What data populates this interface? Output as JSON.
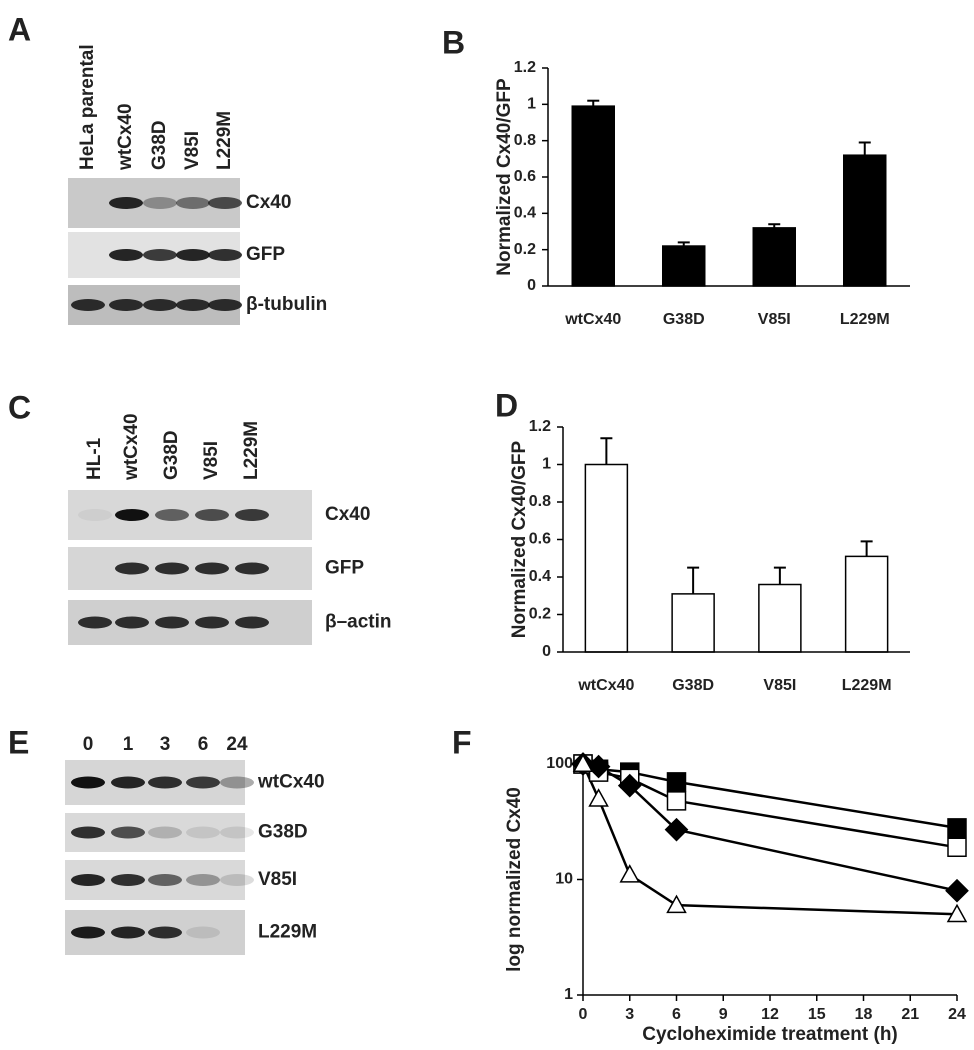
{
  "blots": [
    {
      "panel": "A",
      "lanes": [
        "HeLa parental",
        "wtCx40",
        "G38D",
        "V85I",
        "L229M"
      ],
      "rows": [
        "Cx40",
        "GFP",
        "β-tubulin"
      ]
    },
    {
      "panel": "C",
      "lanes": [
        "HL-1",
        "wtCx40",
        "G38D",
        "V85I",
        "L229M"
      ],
      "rows": [
        "Cx40",
        "GFP",
        "β–actin"
      ]
    },
    {
      "panel": "E",
      "lanes": [
        "0",
        "1",
        "3",
        "6",
        "24"
      ],
      "rows": [
        "wtCx40",
        "G38D",
        "V85I",
        "L229M"
      ]
    }
  ],
  "chart_data": [
    {
      "type": "bar",
      "panel": "B",
      "y_label": "Normalized Cx40/GFP",
      "categories": [
        "wtCx40",
        "G38D",
        "V85I",
        "L229M"
      ],
      "values": [
        0.99,
        0.22,
        0.32,
        0.72
      ],
      "errors": [
        0.03,
        0.02,
        0.02,
        0.07
      ],
      "color": "#000000",
      "ylim": [
        0,
        1.2
      ],
      "yticks": [
        0,
        0.2,
        0.4,
        0.6,
        0.8,
        1,
        1.2
      ]
    },
    {
      "type": "bar",
      "panel": "D",
      "y_label": "Normalized Cx40/GFP",
      "categories": [
        "wtCx40",
        "G38D",
        "V85I",
        "L229M"
      ],
      "values": [
        1.0,
        0.31,
        0.36,
        0.51
      ],
      "errors": [
        0.14,
        0.14,
        0.09,
        0.08
      ],
      "color": "#ffffff",
      "ylim": [
        0,
        1.2
      ],
      "yticks": [
        0,
        0.2,
        0.4,
        0.6,
        0.8,
        1,
        1.2
      ]
    },
    {
      "type": "line",
      "panel": "F",
      "x_label": "Cycloheximide treatment (h)",
      "y_label": "log normalized Cx40",
      "x": [
        0,
        1,
        3,
        6,
        24
      ],
      "xlim": [
        0,
        24
      ],
      "xticks": [
        0,
        3,
        6,
        9,
        12,
        15,
        18,
        21,
        24
      ],
      "ylim": [
        1,
        100
      ],
      "yticks": [
        1,
        10,
        100
      ],
      "log_scale": true,
      "series": [
        {
          "marker": "square",
          "filled": true,
          "color": "#000000",
          "values": [
            100,
            90,
            85,
            70,
            28
          ]
        },
        {
          "marker": "square",
          "filled": false,
          "color": "#000000",
          "values": [
            100,
            85,
            75,
            48,
            19
          ]
        },
        {
          "marker": "diamond",
          "filled": true,
          "color": "#000000",
          "values": [
            100,
            95,
            65,
            27,
            8
          ]
        },
        {
          "marker": "triangle",
          "filled": false,
          "color": "#000000",
          "values": [
            100,
            50,
            11,
            6,
            5
          ]
        }
      ]
    }
  ]
}
